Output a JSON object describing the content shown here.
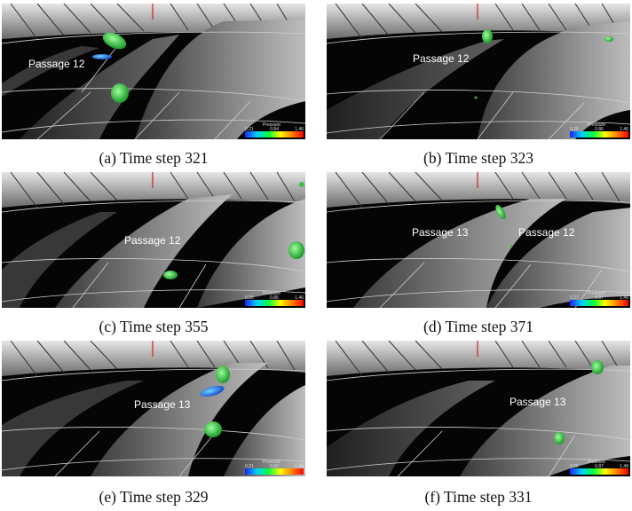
{
  "colors": {
    "background": "#050505",
    "blade": "#8a8a8a",
    "vortex_green": "#38c24a",
    "vortex_blue": "#2a6fe0"
  },
  "panels": [
    {
      "caption": "(a) Time step 321",
      "labels": [
        "Passage 12"
      ],
      "colorbar": {
        "title": "Pressure",
        "min": "0.21",
        "mid": "0.84",
        "max": "1.46"
      }
    },
    {
      "caption": "(b) Time step 323",
      "labels": [
        "Passage 12"
      ],
      "colorbar": {
        "title": "Pressure",
        "min": "0.25",
        "mid": "0.86",
        "max": "1.46"
      }
    },
    {
      "caption": "(c) Time step 355",
      "labels": [
        "Passage 12"
      ],
      "colorbar": {
        "title": "Pressure",
        "min": "0.26",
        "mid": "0.86",
        "max": "1.46"
      }
    },
    {
      "caption": "(d) Time step 371",
      "labels": [
        "Passage 13",
        "Passage 12"
      ],
      "colorbar": {
        "title": "Pressure",
        "min": "0.27",
        "mid": "0.87",
        "max": "1.46"
      }
    },
    {
      "caption": "(e) Time step 329",
      "labels": [
        "Passage 13"
      ],
      "colorbar": {
        "title": "Pressure",
        "min": "0.21",
        "mid": "0.83",
        "max": "1.46"
      }
    },
    {
      "caption": "(f) Time step 331",
      "labels": [
        "Passage 13"
      ],
      "colorbar": {
        "title": "Pressure",
        "min": "0.25",
        "mid": "0.87",
        "max": "1.48"
      }
    }
  ]
}
